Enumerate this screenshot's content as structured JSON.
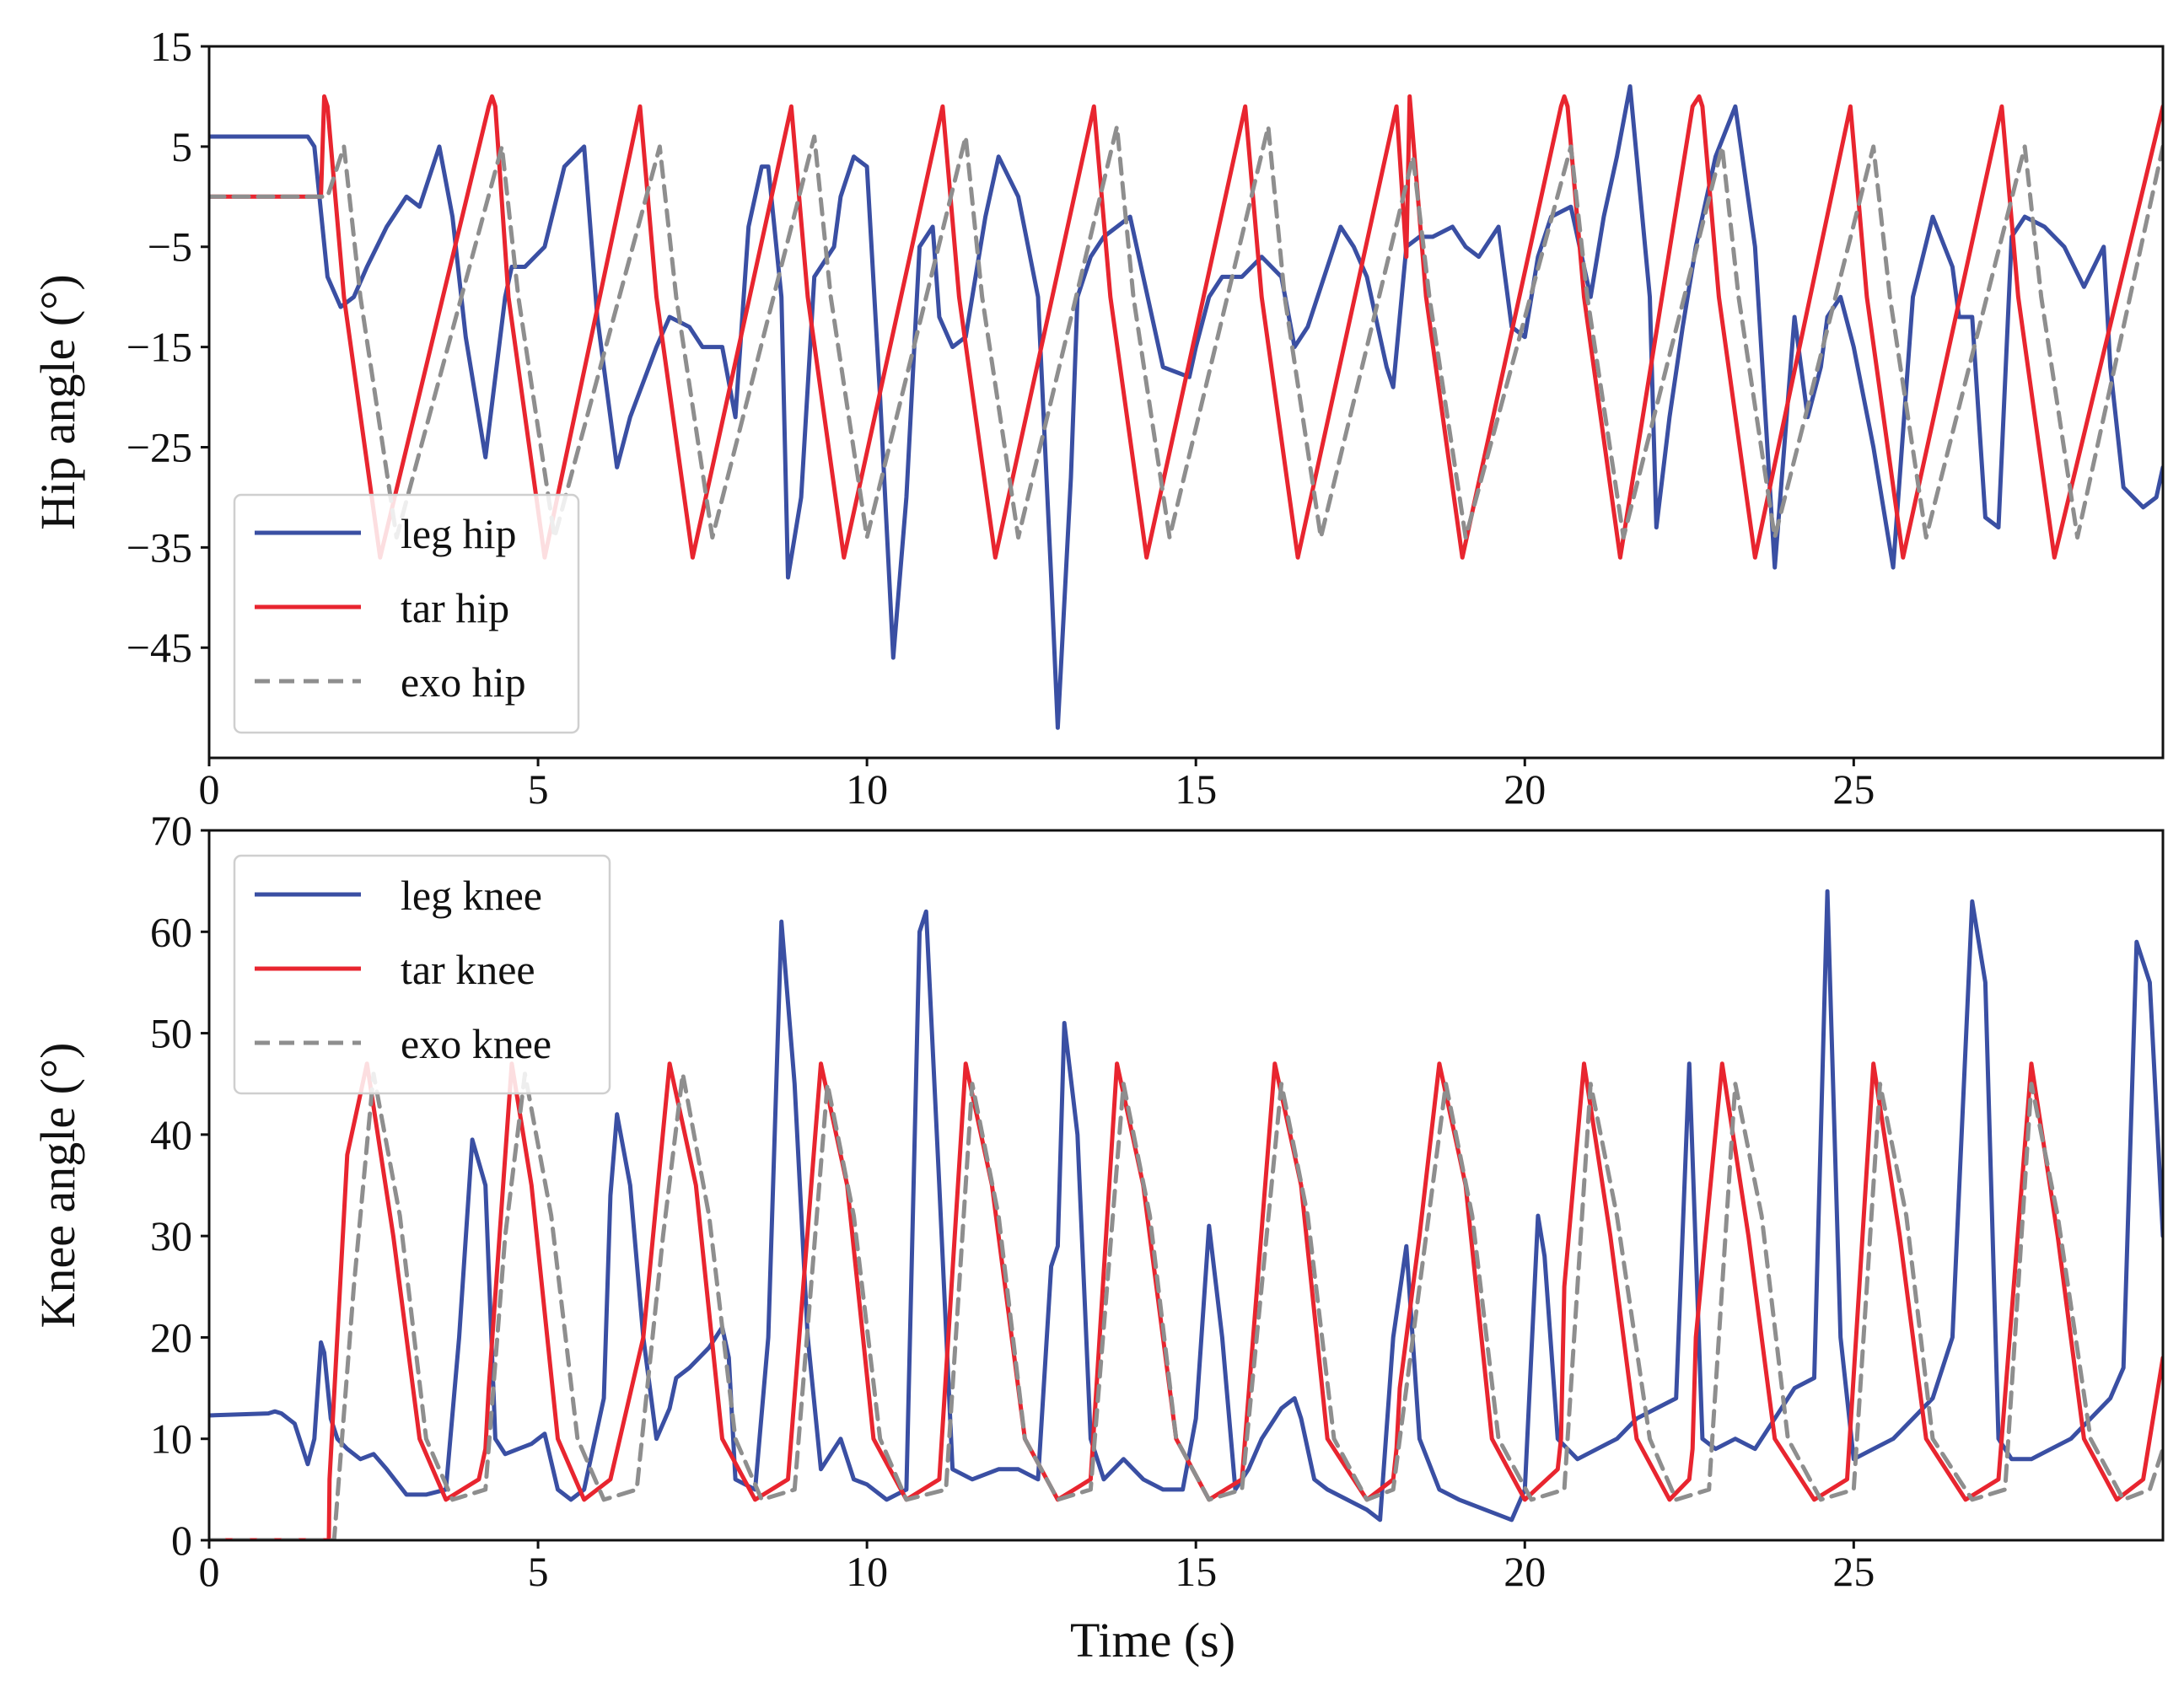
{
  "chart_data": [
    {
      "type": "line",
      "id": "hip",
      "ylabel": "Hip angle (°)",
      "xlabel": "",
      "xlim": [
        0,
        29.7
      ],
      "ylim": [
        -56,
        15
      ],
      "xticks": [
        0,
        5,
        10,
        15,
        20,
        25
      ],
      "xtick_labels": [
        "0",
        "5",
        "10",
        "15",
        "20",
        "25"
      ],
      "yticks": [
        15,
        5,
        -5,
        -15,
        -25,
        -35,
        -45
      ],
      "ytick_labels": [
        "15",
        "5",
        "−5",
        "−15",
        "−25",
        "−35",
        "−45"
      ],
      "legend_location": "lower-left",
      "series": [
        {
          "name": "leg hip",
          "label": "leg hip",
          "color": "#3a4fa3",
          "style": "solid",
          "x": [
            0,
            1.5,
            1.6,
            1.8,
            2.0,
            2.2,
            2.4,
            2.7,
            3.0,
            3.2,
            3.5,
            3.7,
            3.9,
            4.2,
            4.5,
            4.6,
            4.8,
            5.1,
            5.4,
            5.7,
            5.9,
            6.2,
            6.4,
            6.8,
            7.0,
            7.3,
            7.5,
            7.8,
            8.0,
            8.2,
            8.4,
            8.5,
            8.7,
            8.8,
            9.0,
            9.2,
            9.5,
            9.6,
            9.8,
            10.0,
            10.2,
            10.4,
            10.6,
            10.8,
            11.0,
            11.1,
            11.3,
            11.5,
            11.8,
            12.0,
            12.3,
            12.6,
            12.8,
            12.9,
            13.1,
            13.2,
            13.3,
            13.4,
            13.6,
            13.8,
            14.0,
            14.5,
            14.9,
            15.0,
            15.2,
            15.4,
            15.7,
            16.0,
            16.3,
            16.5,
            16.7,
            16.9,
            17.2,
            17.4,
            17.6,
            17.9,
            18.0,
            18.2,
            18.4,
            18.6,
            18.9,
            19.1,
            19.3,
            19.6,
            19.8,
            20.0,
            20.2,
            20.4,
            20.7,
            21.0,
            21.2,
            21.4,
            21.6,
            21.9,
            22.0,
            22.2,
            22.4,
            22.6,
            22.9,
            23.2,
            23.5,
            23.8,
            24.1,
            24.3,
            24.5,
            24.6,
            24.8,
            25.0,
            25.3,
            25.6,
            25.9,
            26.2,
            26.5,
            26.6,
            26.8,
            27.0,
            27.2,
            27.4,
            27.6,
            27.9,
            28.2,
            28.5,
            28.8,
            28.9,
            29.1,
            29.4,
            29.6,
            29.7
          ],
          "y": [
            6,
            6,
            5,
            -8,
            -11,
            -10,
            -7,
            -3,
            0,
            -1,
            5,
            -2,
            -14,
            -26,
            -10,
            -7,
            -7,
            -5,
            3,
            5,
            -12,
            -27,
            -22,
            -15,
            -12,
            -13,
            -15,
            -15,
            -22,
            -3,
            3,
            3,
            -10,
            -38,
            -30,
            -8,
            -5,
            0,
            4,
            3,
            -20,
            -46,
            -30,
            -5,
            -3,
            -12,
            -15,
            -14,
            -2,
            4,
            0,
            -10,
            -38,
            -53,
            -28,
            -10,
            -8,
            -6,
            -4,
            -3,
            -2,
            -17,
            -18,
            -15,
            -10,
            -8,
            -8,
            -6,
            -8,
            -15,
            -13,
            -9,
            -3,
            -5,
            -8,
            -17,
            -19,
            -5,
            -4,
            -4,
            -3,
            -5,
            -6,
            -3,
            -13,
            -14,
            -6,
            -2,
            -1,
            -10,
            -2,
            4,
            11,
            -10,
            -33,
            -22,
            -13,
            -5,
            4,
            9,
            -5,
            -37,
            -12,
            -22,
            -17,
            -12,
            -10,
            -15,
            -25,
            -37,
            -10,
            -2,
            -7,
            -12,
            -12,
            -32,
            -33,
            -4,
            -2,
            -3,
            -5,
            -9,
            -5,
            -17,
            -29,
            -31,
            -30,
            -27
          ]
        },
        {
          "name": "tar hip",
          "label": "tar hip",
          "color": "#e8252f",
          "style": "solid",
          "x": [
            0,
            1.7,
            1.75,
            1.8,
            2.05,
            2.6,
            4.25,
            4.3,
            4.35,
            4.55,
            5.1,
            6.55,
            6.8,
            7.35,
            8.85,
            9.1,
            9.65,
            11.15,
            11.4,
            11.95,
            13.45,
            13.7,
            14.25,
            15.75,
            16.0,
            16.55,
            18.05,
            18.2,
            18.25,
            18.5,
            19.05,
            20.55,
            20.6,
            20.65,
            20.9,
            21.45,
            22.55,
            22.65,
            22.7,
            22.95,
            23.5,
            24.95,
            25.2,
            25.75,
            27.25,
            27.5,
            28.05,
            29.7
          ],
          "y": [
            0,
            0,
            10,
            9,
            -10,
            -36,
            9,
            10,
            9,
            -10,
            -36,
            9,
            -10,
            -36,
            9,
            -10,
            -36,
            9,
            -10,
            -36,
            9,
            -10,
            -36,
            9,
            -10,
            -36,
            9,
            -6,
            10,
            -10,
            -36,
            9,
            10,
            9,
            -10,
            -36,
            9,
            10,
            9,
            -10,
            -36,
            9,
            -10,
            -36,
            9,
            -10,
            -36,
            9
          ]
        },
        {
          "name": "exo hip",
          "label": "exo hip",
          "color": "#8e8e8e",
          "style": "dashed",
          "x": [
            0,
            1.8,
            2.05,
            2.3,
            2.85,
            4.45,
            4.7,
            5.25,
            6.85,
            7.1,
            7.65,
            9.2,
            9.45,
            10.0,
            11.5,
            11.75,
            12.3,
            13.8,
            14.05,
            14.6,
            16.1,
            16.35,
            16.9,
            18.3,
            18.55,
            19.1,
            20.7,
            20.95,
            21.5,
            23.0,
            23.25,
            23.8,
            25.3,
            25.55,
            26.1,
            27.6,
            27.85,
            28.4,
            29.7
          ],
          "y": [
            0,
            0,
            5,
            -10,
            -34,
            5,
            -10,
            -34,
            5,
            -10,
            -34,
            6,
            -10,
            -34,
            6,
            -10,
            -34,
            7,
            -10,
            -34,
            7,
            -10,
            -34,
            4,
            -10,
            -34,
            5,
            -10,
            -34,
            5,
            -10,
            -34,
            5,
            -10,
            -34,
            5,
            -10,
            -34,
            5
          ]
        }
      ]
    },
    {
      "type": "line",
      "id": "knee",
      "ylabel": "Knee angle (°)",
      "xlabel": "Time (s)",
      "xlim": [
        0,
        29.7
      ],
      "ylim": [
        0,
        70
      ],
      "xticks": [
        0,
        5,
        10,
        15,
        20,
        25
      ],
      "xtick_labels": [
        "0",
        "5",
        "10",
        "15",
        "20",
        "25"
      ],
      "yticks": [
        0,
        10,
        20,
        30,
        40,
        50,
        60,
        70
      ],
      "ytick_labels": [
        "0",
        "10",
        "20",
        "30",
        "40",
        "50",
        "60",
        "70"
      ],
      "legend_location": "upper-left",
      "series": [
        {
          "name": "leg knee",
          "label": "leg knee",
          "color": "#3a4fa3",
          "style": "solid",
          "x": [
            0,
            0.9,
            1.0,
            1.1,
            1.3,
            1.5,
            1.6,
            1.7,
            1.75,
            1.85,
            1.95,
            2.1,
            2.3,
            2.5,
            2.7,
            3.0,
            3.3,
            3.6,
            3.8,
            4.0,
            4.2,
            4.35,
            4.5,
            4.7,
            4.9,
            5.1,
            5.3,
            5.5,
            5.7,
            6.0,
            6.1,
            6.2,
            6.4,
            6.6,
            6.8,
            7.0,
            7.1,
            7.3,
            7.6,
            7.8,
            7.9,
            8.0,
            8.3,
            8.5,
            8.7,
            8.9,
            9.1,
            9.3,
            9.6,
            9.8,
            10.0,
            10.3,
            10.6,
            10.8,
            10.9,
            11.1,
            11.3,
            11.6,
            12.0,
            12.3,
            12.6,
            12.8,
            12.9,
            13.0,
            13.2,
            13.4,
            13.6,
            13.9,
            14.2,
            14.5,
            14.8,
            15.0,
            15.2,
            15.4,
            15.6,
            15.8,
            16.0,
            16.3,
            16.5,
            16.6,
            16.8,
            17.0,
            17.3,
            17.6,
            17.8,
            18.0,
            18.2,
            18.4,
            18.7,
            19.0,
            19.4,
            19.8,
            20.0,
            20.2,
            20.3,
            20.5,
            20.8,
            21.1,
            21.4,
            21.7,
            22.0,
            22.3,
            22.5,
            22.7,
            22.9,
            23.2,
            23.5,
            23.8,
            24.1,
            24.4,
            24.6,
            24.8,
            25.0,
            25.3,
            25.6,
            25.9,
            26.2,
            26.5,
            26.8,
            27.0,
            27.2,
            27.4,
            27.7,
            28.0,
            28.3,
            28.6,
            28.9,
            29.1,
            29.3,
            29.5,
            29.7
          ],
          "y": [
            12.3,
            12.5,
            12.7,
            12.5,
            11.5,
            7.5,
            10,
            19.5,
            18.5,
            12,
            10,
            9,
            8,
            8.5,
            7,
            4.5,
            4.5,
            5,
            20,
            39.5,
            35,
            10,
            8.5,
            9,
            9.5,
            10.5,
            5,
            4,
            5,
            14,
            34,
            42,
            35,
            20,
            10,
            13,
            16,
            17,
            19,
            21,
            18,
            6,
            5,
            20,
            61,
            45,
            20,
            7,
            10,
            6,
            5.5,
            4,
            5,
            60,
            62,
            35,
            7,
            6,
            7,
            7,
            6,
            27,
            29,
            51,
            40,
            10,
            6,
            8,
            6,
            5,
            5,
            12,
            31,
            20,
            5,
            7,
            10,
            13,
            14,
            12,
            6,
            5,
            4,
            3,
            2,
            20,
            29,
            10,
            5,
            4,
            3,
            2,
            5,
            32,
            28,
            10,
            8,
            9,
            10,
            12,
            13,
            14,
            47,
            10,
            9,
            10,
            9,
            12,
            15,
            16,
            64,
            20,
            8,
            9,
            10,
            12,
            14,
            20,
            63,
            55,
            10,
            8,
            8,
            9,
            10,
            12,
            14,
            17,
            59,
            55,
            30
          ]
        },
        {
          "name": "tar knee",
          "label": "tar knee",
          "color": "#e8252f",
          "style": "solid",
          "x": [
            0,
            1.82,
            1.83,
            2.1,
            2.4,
            2.8,
            3.2,
            3.6,
            4.1,
            4.2,
            4.25,
            4.6,
            4.9,
            5.3,
            5.7,
            6.1,
            6.6,
            7.0,
            7.4,
            7.8,
            8.3,
            8.8,
            9.3,
            9.7,
            10.1,
            10.6,
            11.1,
            11.5,
            11.9,
            12.4,
            12.9,
            13.4,
            13.8,
            14.2,
            14.7,
            15.2,
            15.7,
            16.2,
            16.6,
            17.0,
            17.6,
            18.0,
            18.05,
            18.1,
            18.4,
            18.7,
            19.1,
            19.5,
            20.0,
            20.5,
            20.55,
            20.6,
            20.9,
            21.3,
            21.7,
            22.2,
            22.5,
            22.55,
            22.6,
            23.0,
            23.4,
            23.8,
            24.4,
            24.9,
            25.3,
            25.7,
            26.1,
            26.7,
            27.2,
            27.7,
            28.1,
            28.5,
            29.0,
            29.4,
            29.7
          ],
          "y": [
            0,
            0,
            6,
            38,
            47,
            30,
            10,
            4,
            6,
            9,
            15,
            47,
            35,
            10,
            4,
            6,
            20,
            47,
            35,
            10,
            4,
            6,
            47,
            35,
            10,
            4,
            6,
            47,
            35,
            10,
            4,
            6,
            47,
            35,
            10,
            4,
            6,
            47,
            35,
            10,
            4,
            6,
            9,
            15,
            30,
            47,
            35,
            10,
            4,
            7,
            10,
            25,
            47,
            30,
            10,
            4,
            6,
            9,
            20,
            47,
            30,
            10,
            4,
            6,
            47,
            30,
            10,
            4,
            6,
            47,
            30,
            10,
            4,
            6,
            18
          ]
        },
        {
          "name": "exo knee",
          "label": "exo knee",
          "color": "#8e8e8e",
          "style": "dashed",
          "x": [
            0,
            1.9,
            2.2,
            2.5,
            2.9,
            3.3,
            3.7,
            4.2,
            4.5,
            4.8,
            5.2,
            5.6,
            6.0,
            6.5,
            6.9,
            7.2,
            7.6,
            8.0,
            8.4,
            8.9,
            9.4,
            9.8,
            10.2,
            10.6,
            11.2,
            11.6,
            12.0,
            12.4,
            12.9,
            13.4,
            13.9,
            14.3,
            14.7,
            15.2,
            15.7,
            16.3,
            16.7,
            17.1,
            17.6,
            18.0,
            18.4,
            18.8,
            19.2,
            19.6,
            20.1,
            20.6,
            21.0,
            21.4,
            21.9,
            22.3,
            22.8,
            23.2,
            23.6,
            24.0,
            24.5,
            25.0,
            25.4,
            25.8,
            26.2,
            26.8,
            27.3,
            27.7,
            28.1,
            28.6,
            29.1,
            29.5,
            29.7
          ],
          "y": [
            0,
            0,
            25,
            46,
            32,
            10,
            4,
            5,
            30,
            46,
            32,
            10,
            4,
            5,
            30,
            46,
            32,
            10,
            4,
            5,
            45,
            32,
            10,
            4,
            5,
            45,
            32,
            10,
            4,
            5,
            45,
            32,
            10,
            4,
            5,
            45,
            32,
            10,
            4,
            5,
            25,
            45,
            32,
            10,
            4,
            5,
            45,
            32,
            10,
            4,
            5,
            45,
            32,
            10,
            4,
            5,
            45,
            32,
            10,
            4,
            5,
            45,
            32,
            10,
            4,
            5,
            9
          ]
        }
      ]
    }
  ]
}
